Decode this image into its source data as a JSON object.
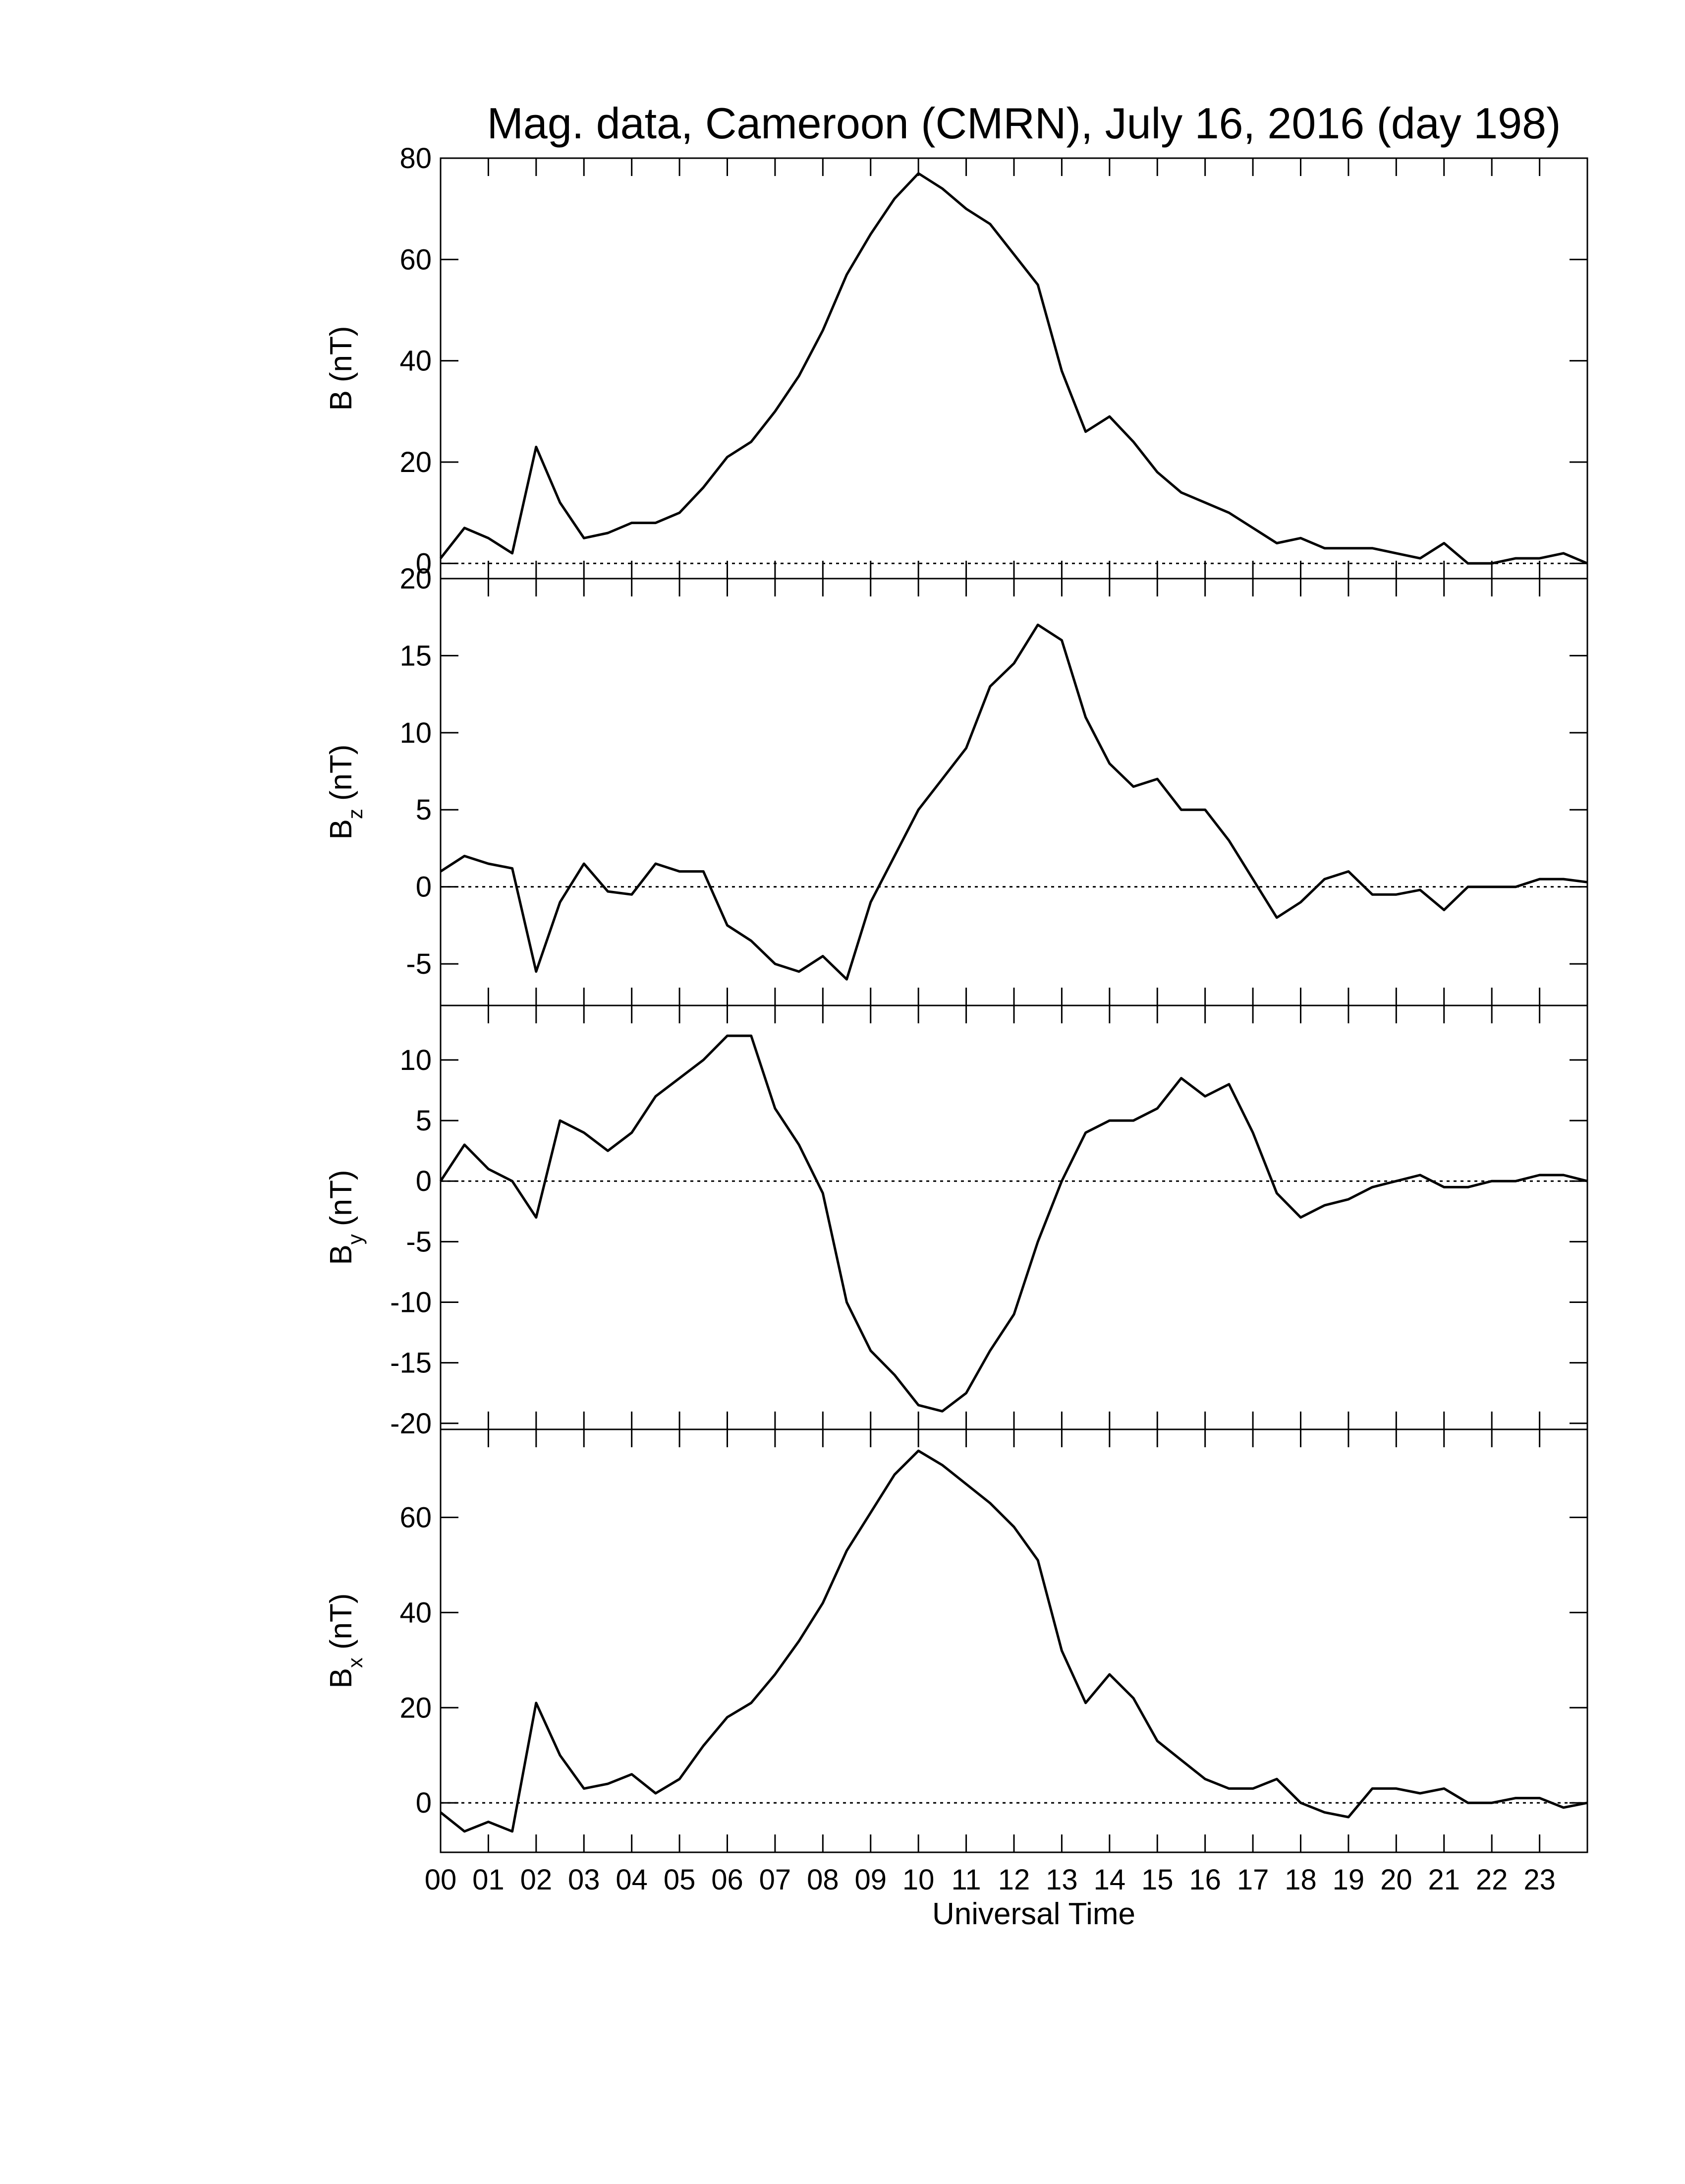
{
  "chart_data": [
    {
      "type": "line",
      "title": "Mag. data, Cameroon (CMRN), July 16, 2016 (day 198)",
      "ylabel_main": "B",
      "ylabel_unit": "(nT)",
      "xlim": [
        0,
        24
      ],
      "ylim": [
        -3,
        80
      ],
      "yticks": [
        0,
        20,
        40,
        60,
        80
      ],
      "reference_line": 0,
      "x": [
        0,
        0.5,
        1,
        1.5,
        2,
        2.5,
        3,
        3.5,
        4,
        4.5,
        5,
        5.5,
        6,
        6.5,
        7,
        7.5,
        8,
        8.5,
        9,
        9.5,
        10,
        10.5,
        11,
        11.5,
        12,
        12.5,
        13,
        13.5,
        14,
        14.5,
        15,
        15.5,
        16,
        16.5,
        17,
        17.5,
        18,
        18.5,
        19,
        19.5,
        20,
        20.5,
        21,
        21.5,
        22,
        22.5,
        23,
        23.5,
        24
      ],
      "series": [
        {
          "color": "#000000",
          "values": [
            1,
            7,
            5,
            2,
            23,
            12,
            5,
            6,
            8,
            8,
            10,
            15,
            21,
            24,
            30,
            37,
            46,
            57,
            65,
            72,
            77,
            74,
            70,
            67,
            61,
            55,
            38,
            26,
            29,
            24,
            18,
            14,
            12,
            10,
            7,
            4,
            5,
            3,
            3,
            3,
            2,
            1,
            4,
            0,
            0,
            1,
            1,
            2,
            0
          ]
        }
      ]
    },
    {
      "type": "line",
      "ylabel_main": "B",
      "ylabel_sub": "z",
      "ylabel_unit": "(nT)",
      "xlim": [
        0,
        24
      ],
      "ylim": [
        -7.7,
        20
      ],
      "yticks": [
        -5,
        0,
        5,
        10,
        15,
        20
      ],
      "reference_line": 0,
      "x": [
        0,
        0.5,
        1,
        1.5,
        2,
        2.5,
        3,
        3.5,
        4,
        4.5,
        5,
        5.5,
        6,
        6.5,
        7,
        7.5,
        8,
        8.5,
        9,
        9.5,
        10,
        10.5,
        11,
        11.5,
        12,
        12.5,
        13,
        13.5,
        14,
        14.5,
        15,
        15.5,
        16,
        16.5,
        17,
        17.5,
        18,
        18.5,
        19,
        19.5,
        20,
        20.5,
        21,
        21.5,
        22,
        22.5,
        23,
        23.5,
        24
      ],
      "series": [
        {
          "color": "#000000",
          "values": [
            1,
            2,
            1.5,
            1.2,
            -5.5,
            -1,
            1.5,
            -0.3,
            -0.5,
            1.5,
            1,
            1,
            -2.5,
            -3.5,
            -5,
            -5.5,
            -4.5,
            -6,
            -1,
            2,
            5,
            7,
            9,
            13,
            14.5,
            17,
            16,
            11,
            8,
            6.5,
            7,
            5,
            5,
            3,
            0.5,
            -2,
            -1,
            0.5,
            1,
            -0.5,
            -0.5,
            -0.2,
            -1.5,
            0,
            0,
            0,
            0.5,
            0.5,
            0.3
          ]
        }
      ]
    },
    {
      "type": "line",
      "ylabel_main": "B",
      "ylabel_sub": "y",
      "ylabel_unit": "(nT)",
      "xlim": [
        0,
        24
      ],
      "ylim": [
        -20.5,
        14.5
      ],
      "yticks": [
        -20,
        -15,
        -10,
        -5,
        0,
        5,
        10
      ],
      "reference_line": 0,
      "x": [
        0,
        0.5,
        1,
        1.5,
        2,
        2.5,
        3,
        3.5,
        4,
        4.5,
        5,
        5.5,
        6,
        6.5,
        7,
        7.5,
        8,
        8.5,
        9,
        9.5,
        10,
        10.5,
        11,
        11.5,
        12,
        12.5,
        13,
        13.5,
        14,
        14.5,
        15,
        15.5,
        16,
        16.5,
        17,
        17.5,
        18,
        18.5,
        19,
        19.5,
        20,
        20.5,
        21,
        21.5,
        22,
        22.5,
        23,
        23.5,
        24
      ],
      "series": [
        {
          "color": "#000000",
          "values": [
            0,
            3,
            1,
            0,
            -3,
            5,
            4,
            2.5,
            4,
            7,
            8.5,
            10,
            12,
            12,
            6,
            3,
            -1,
            -10,
            -14,
            -16,
            -18.5,
            -19,
            -17.5,
            -14,
            -11,
            -5,
            0,
            4,
            5,
            5,
            6,
            8.5,
            7,
            8,
            4,
            -1,
            -3,
            -2,
            -1.5,
            -0.5,
            0,
            0.5,
            -0.5,
            -0.5,
            0,
            0,
            0.5,
            0.5,
            0
          ]
        }
      ]
    },
    {
      "type": "line",
      "ylabel_main": "B",
      "ylabel_sub": "x",
      "ylabel_unit": "(nT)",
      "xlabel": "Universal Time",
      "xlim": [
        0,
        24
      ],
      "ylim": [
        -10.4,
        78.5
      ],
      "yticks": [
        0,
        20,
        40,
        60
      ],
      "reference_line": 0,
      "xticks": [
        {
          "value": 0,
          "label": "00"
        },
        {
          "value": 1,
          "label": "01"
        },
        {
          "value": 2,
          "label": "02"
        },
        {
          "value": 3,
          "label": "03"
        },
        {
          "value": 4,
          "label": "04"
        },
        {
          "value": 5,
          "label": "05"
        },
        {
          "value": 6,
          "label": "06"
        },
        {
          "value": 7,
          "label": "07"
        },
        {
          "value": 8,
          "label": "08"
        },
        {
          "value": 9,
          "label": "09"
        },
        {
          "value": 10,
          "label": "10"
        },
        {
          "value": 11,
          "label": "11"
        },
        {
          "value": 12,
          "label": "12"
        },
        {
          "value": 13,
          "label": "13"
        },
        {
          "value": 14,
          "label": "14"
        },
        {
          "value": 15,
          "label": "15"
        },
        {
          "value": 16,
          "label": "16"
        },
        {
          "value": 17,
          "label": "17"
        },
        {
          "value": 18,
          "label": "18"
        },
        {
          "value": 19,
          "label": "19"
        },
        {
          "value": 20,
          "label": "20"
        },
        {
          "value": 21,
          "label": "21"
        },
        {
          "value": 22,
          "label": "22"
        },
        {
          "value": 23,
          "label": "23"
        }
      ],
      "x": [
        0,
        0.5,
        1,
        1.5,
        2,
        2.5,
        3,
        3.5,
        4,
        4.5,
        5,
        5.5,
        6,
        6.5,
        7,
        7.5,
        8,
        8.5,
        9,
        9.5,
        10,
        10.5,
        11,
        11.5,
        12,
        12.5,
        13,
        13.5,
        14,
        14.5,
        15,
        15.5,
        16,
        16.5,
        17,
        17.5,
        18,
        18.5,
        19,
        19.5,
        20,
        20.5,
        21,
        21.5,
        22,
        22.5,
        23,
        23.5,
        24
      ],
      "series": [
        {
          "color": "#000000",
          "values": [
            -2,
            -6,
            -4,
            -6,
            21,
            10,
            3,
            4,
            6,
            2,
            5,
            12,
            18,
            21,
            27,
            34,
            42,
            53,
            61,
            69,
            74,
            71,
            67,
            63,
            58,
            51,
            32,
            21,
            27,
            22,
            13,
            9,
            5,
            3,
            3,
            5,
            0,
            -2,
            -3,
            3,
            3,
            2,
            3,
            0,
            0,
            1,
            1,
            -1,
            0
          ]
        }
      ]
    }
  ]
}
